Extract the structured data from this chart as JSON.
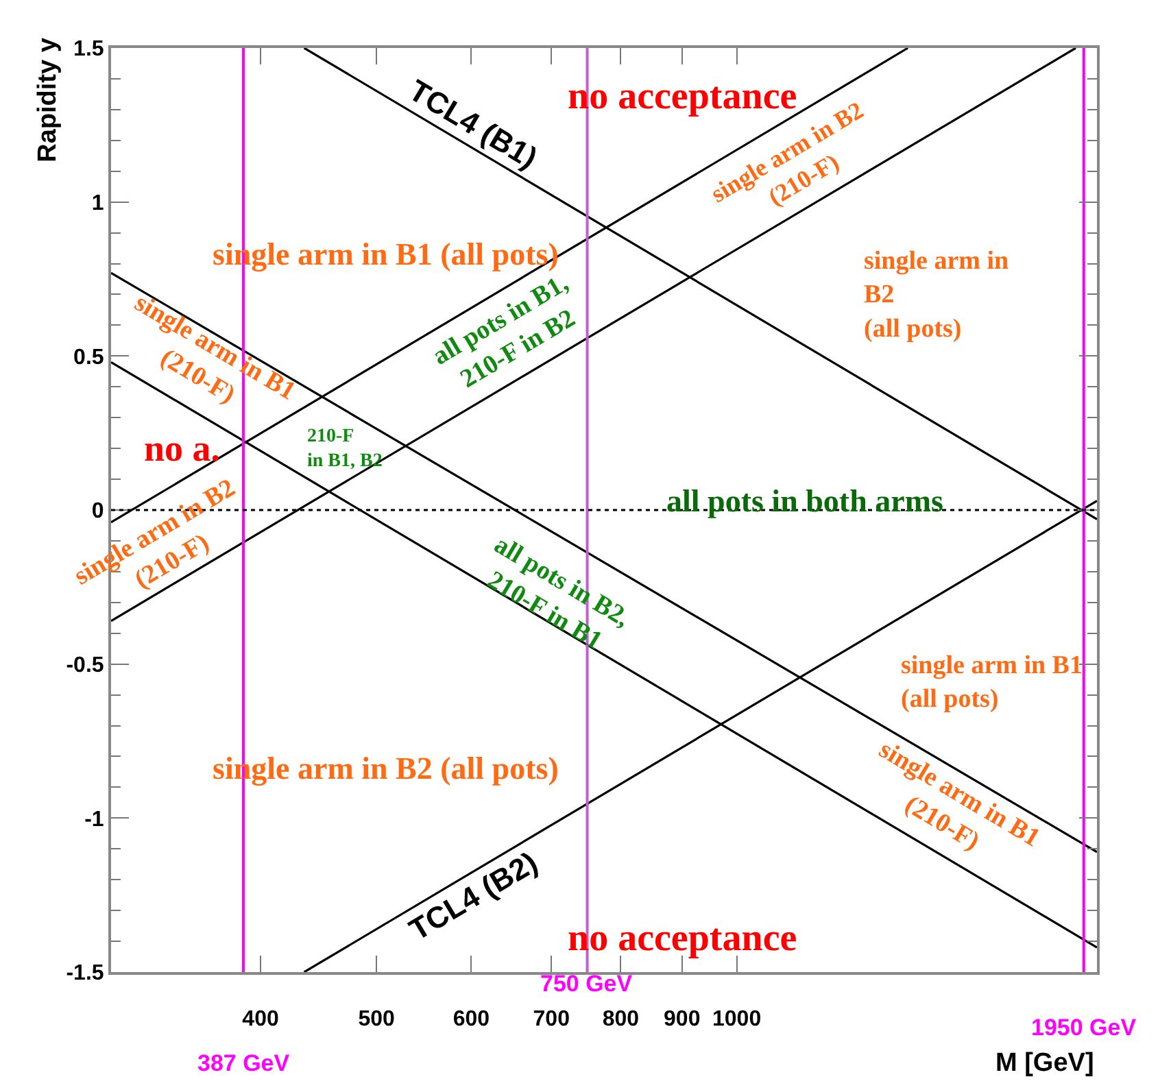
{
  "chart_data": {
    "type": "line",
    "xlabel": "M [GeV]",
    "ylabel": "Rapidity y",
    "log": "x",
    "xlim": [
      300,
      2000
    ],
    "ylim": [
      -1.5,
      1.5
    ],
    "xticks": [
      400,
      500,
      600,
      700,
      800,
      900,
      1000
    ],
    "yticks": [
      -1.5,
      -1,
      -0.5,
      0,
      0.5,
      1,
      1.5
    ],
    "line_style": "solid",
    "series": [
      {
        "name": "TCL4 (B1)",
        "color": "#000000",
        "x": [
          435,
          2000
        ],
        "values": [
          1.5,
          -0.03
        ]
      },
      {
        "name": "TCL4 (B2)",
        "color": "#000000",
        "x": [
          435,
          2000
        ],
        "values": [
          -1.5,
          0.03
        ]
      },
      {
        "color": "#000000",
        "x": [
          300,
          2000
        ],
        "values": [
          0.77,
          -1.11
        ]
      },
      {
        "color": "#000000",
        "x": [
          300,
          2000
        ],
        "values": [
          0.48,
          -1.42
        ]
      },
      {
        "color": "#000000",
        "x": [
          300,
          1920
        ],
        "values": [
          -0.36,
          1.5
        ]
      },
      {
        "color": "#000000",
        "x": [
          300,
          1390
        ],
        "values": [
          -0.04,
          1.5
        ]
      }
    ],
    "ref_lines": [
      {
        "axis": "y",
        "value": 0,
        "color": "#000000",
        "line_style": "dotted"
      },
      {
        "axis": "x",
        "value": 387,
        "label": "387 GeV",
        "color": "#ff00ff"
      },
      {
        "axis": "x",
        "value": 750,
        "label": "750 GeV",
        "color": "#c060d0"
      },
      {
        "axis": "x",
        "value": 1950,
        "label": "1950 GeV",
        "color": "#ff00ff"
      }
    ],
    "annotations": [
      "no acceptance",
      "no acceptance",
      "single arm in B1 (all pots)",
      "single arm in B2 (all pots)",
      "single arm in B2\n(210-F)",
      "single arm in\nB2\n(all pots)",
      "single arm in B1\n(210-F)",
      "no a.",
      "210-F\nin B1, B2",
      "all pots in B1,\n210-F in B2",
      "all pots in both arms",
      "single arm in B2\n(210-F)",
      "all pots in B2,\n210-F in B1",
      "single arm in B1\n(all pots)",
      "single arm in B1\n(210-F)"
    ]
  }
}
